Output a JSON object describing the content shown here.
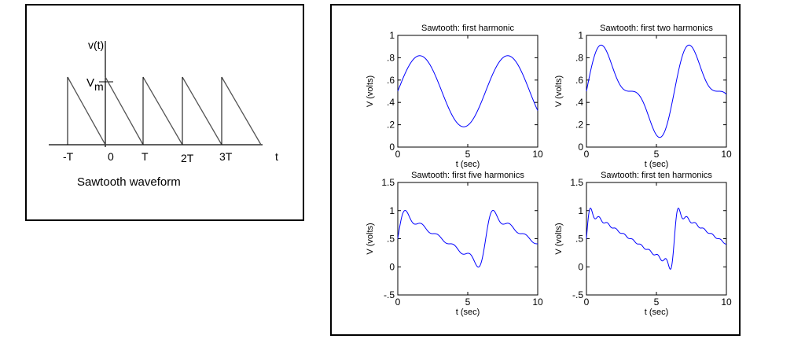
{
  "sawtooth_diagram": {
    "y_label": "v(t)",
    "vm_label": "V",
    "vm_sub": "m",
    "x_ticks": [
      "-T",
      "0",
      "T",
      "2T",
      "3T"
    ],
    "x_axis_label": "t",
    "caption": "Sawtooth waveform"
  },
  "colors": {
    "series": "#0000ff",
    "axes": "#000000"
  },
  "chart_data": [
    {
      "type": "line",
      "title": "Sawtooth: first harmonic",
      "xlabel": "t (sec)",
      "ylabel": "V (volts)",
      "xlim": [
        0,
        10
      ],
      "ylim": [
        0,
        1
      ],
      "xticks": [
        0,
        5,
        10
      ],
      "yticks": [
        0,
        0.2,
        0.4,
        0.6,
        0.8,
        1
      ],
      "harmonics": 1,
      "x": [
        0,
        1,
        2,
        3,
        4,
        5,
        6,
        7,
        8,
        9,
        10
      ],
      "y": [
        0.5,
        0.77,
        0.77,
        0.5,
        0.24,
        0.19,
        0.39,
        0.7,
        0.82,
        0.62,
        0.34
      ]
    },
    {
      "type": "line",
      "title": "Sawtooth: first two harmonics",
      "xlabel": "t (sec)",
      "ylabel": "V (volts)",
      "xlim": [
        0,
        10
      ],
      "ylim": [
        0,
        1
      ],
      "xticks": [
        0,
        5,
        10
      ],
      "yticks": [
        0,
        0.2,
        0.4,
        0.6,
        0.8,
        1
      ],
      "harmonics": 2,
      "x": [
        0,
        1,
        2,
        3,
        4,
        5,
        6,
        7,
        8,
        9,
        10
      ],
      "y": [
        0.5,
        0.91,
        0.71,
        0.5,
        0.45,
        0.1,
        0.37,
        0.88,
        0.71,
        0.5,
        0.47
      ]
    },
    {
      "type": "line",
      "title": "Sawtooth: first five harmonics",
      "xlabel": "t (sec)",
      "ylabel": "V (volts)",
      "xlim": [
        0,
        10
      ],
      "ylim": [
        -0.5,
        1.5
      ],
      "xticks": [
        0,
        5,
        10
      ],
      "yticks": [
        -0.5,
        0,
        0.5,
        1,
        1.5
      ],
      "harmonics": 5,
      "x": [
        0,
        0.5,
        1,
        2,
        3,
        4,
        5,
        5.5,
        6,
        6.8,
        7.5,
        8,
        9,
        10
      ],
      "y": [
        0.5,
        1.0,
        0.85,
        0.66,
        0.5,
        0.33,
        0.2,
        0.2,
        0.0,
        1.0,
        0.8,
        0.67,
        0.5,
        0.38
      ]
    },
    {
      "type": "line",
      "title": "Sawtooth: first ten harmonics",
      "xlabel": "t (sec)",
      "ylabel": "V (volts)",
      "xlim": [
        0,
        10
      ],
      "ylim": [
        -0.5,
        1.5
      ],
      "xticks": [
        0,
        5,
        10
      ],
      "yticks": [
        -0.5,
        0,
        0.5,
        1,
        1.5
      ],
      "harmonics": 10,
      "x": [
        0,
        0.3,
        1,
        2,
        3,
        4,
        5,
        6,
        6.3,
        7,
        8,
        9,
        10
      ],
      "y": [
        0.5,
        1.0,
        0.9,
        0.76,
        0.6,
        0.45,
        0.3,
        0.0,
        1.0,
        0.84,
        0.68,
        0.52,
        0.37
      ]
    }
  ]
}
